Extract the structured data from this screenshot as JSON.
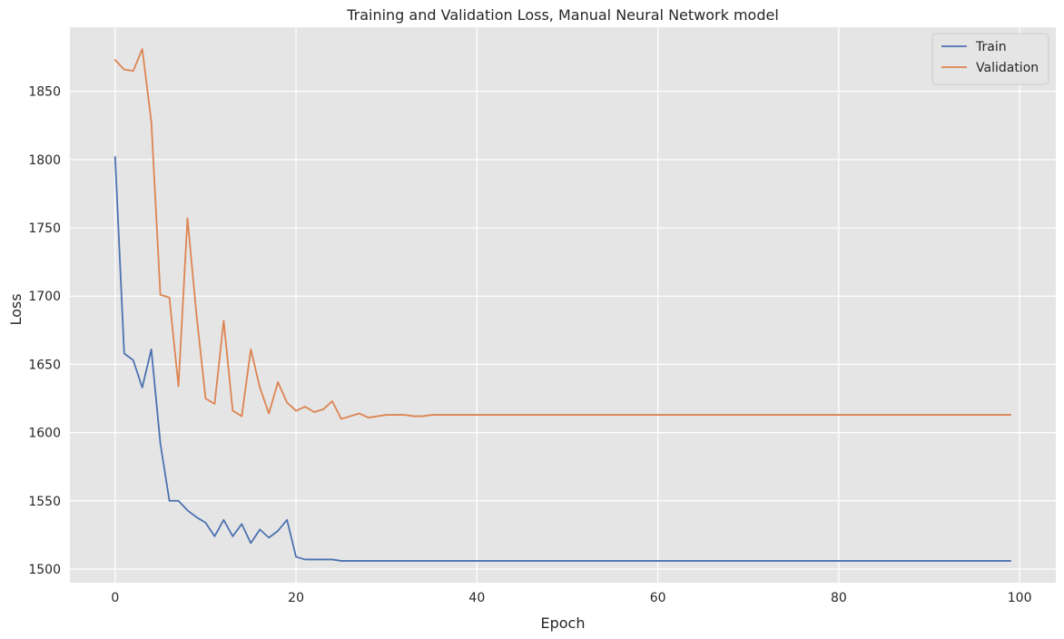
{
  "chart_data": {
    "type": "line",
    "title": "Training and Validation Loss, Manual Neural Network model",
    "xlabel": "Epoch",
    "ylabel": "Loss",
    "xlim": [
      -5,
      104
    ],
    "ylim": [
      1490,
      1897
    ],
    "xticks": [
      0,
      20,
      40,
      60,
      80,
      100
    ],
    "yticks": [
      1500,
      1550,
      1600,
      1650,
      1700,
      1750,
      1800,
      1850
    ],
    "grid": true,
    "legend_position": "top-right",
    "x": [
      0,
      1,
      2,
      3,
      4,
      5,
      6,
      7,
      8,
      9,
      10,
      11,
      12,
      13,
      14,
      15,
      16,
      17,
      18,
      19,
      20,
      21,
      22,
      23,
      24,
      25,
      26,
      27,
      28,
      29,
      30,
      31,
      32,
      33,
      34,
      35,
      36,
      37,
      38,
      39,
      40,
      41,
      42,
      43,
      44,
      45,
      46,
      47,
      48,
      49,
      50,
      51,
      52,
      53,
      54,
      55,
      56,
      57,
      58,
      59,
      60,
      61,
      62,
      63,
      64,
      65,
      66,
      67,
      68,
      69,
      70,
      71,
      72,
      73,
      74,
      75,
      76,
      77,
      78,
      79,
      80,
      81,
      82,
      83,
      84,
      85,
      86,
      87,
      88,
      89,
      90,
      91,
      92,
      93,
      94,
      95,
      96,
      97,
      98,
      99
    ],
    "series": [
      {
        "name": "Train",
        "color": "#4c72b0",
        "values": [
          1802,
          1658,
          1653,
          1633,
          1661,
          1592,
          1550,
          1550,
          1543,
          1538,
          1534,
          1524,
          1536,
          1524,
          1533,
          1519,
          1529,
          1523,
          1528,
          1536,
          1509,
          1507,
          1507,
          1507,
          1507,
          1506,
          1506,
          1506,
          1506,
          1506,
          1506,
          1506,
          1506,
          1506,
          1506,
          1506,
          1506,
          1506,
          1506,
          1506,
          1506,
          1506,
          1506,
          1506,
          1506,
          1506,
          1506,
          1506,
          1506,
          1506,
          1506,
          1506,
          1506,
          1506,
          1506,
          1506,
          1506,
          1506,
          1506,
          1506,
          1506,
          1506,
          1506,
          1506,
          1506,
          1506,
          1506,
          1506,
          1506,
          1506,
          1506,
          1506,
          1506,
          1506,
          1506,
          1506,
          1506,
          1506,
          1506,
          1506,
          1506,
          1506,
          1506,
          1506,
          1506,
          1506,
          1506,
          1506,
          1506,
          1506,
          1506,
          1506,
          1506,
          1506,
          1506,
          1506,
          1506,
          1506,
          1506,
          1506
        ]
      },
      {
        "name": "Validation",
        "color": "#dd8452",
        "values": [
          1873,
          1866,
          1865,
          1881,
          1828,
          1701,
          1699,
          1634,
          1757,
          1686,
          1625,
          1621,
          1682,
          1616,
          1612,
          1661,
          1633,
          1614,
          1637,
          1622,
          1616,
          1619,
          1615,
          1617,
          1623,
          1610,
          1612,
          1614,
          1611,
          1612,
          1613,
          1613,
          1613,
          1612,
          1612,
          1613,
          1613,
          1613,
          1613,
          1613,
          1613,
          1613,
          1613,
          1613,
          1613,
          1613,
          1613,
          1613,
          1613,
          1613,
          1613,
          1613,
          1613,
          1613,
          1613,
          1613,
          1613,
          1613,
          1613,
          1613,
          1613,
          1613,
          1613,
          1613,
          1613,
          1613,
          1613,
          1613,
          1613,
          1613,
          1613,
          1613,
          1613,
          1613,
          1613,
          1613,
          1613,
          1613,
          1613,
          1613,
          1613,
          1613,
          1613,
          1613,
          1613,
          1613,
          1613,
          1613,
          1613,
          1613,
          1613,
          1613,
          1613,
          1613,
          1613,
          1613,
          1613,
          1613,
          1613,
          1613
        ]
      }
    ]
  },
  "colors": {
    "plot_background": "#e5e5e5",
    "grid": "#ffffff",
    "text": "#262626"
  }
}
